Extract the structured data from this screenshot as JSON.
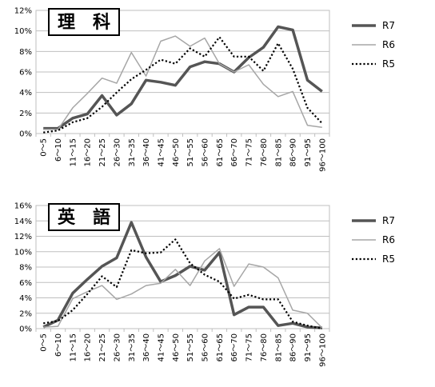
{
  "chart_data": [
    {
      "type": "line",
      "title": "理　科",
      "categories": [
        "0～5",
        "6～10",
        "11～15",
        "16～20",
        "21～25",
        "26～30",
        "31～35",
        "36～40",
        "41～45",
        "46～50",
        "51～55",
        "56～60",
        "61～65",
        "66～70",
        "71～75",
        "76～80",
        "81～85",
        "86～90",
        "91～95",
        "96～100"
      ],
      "yticks": [
        "0%",
        "2%",
        "4%",
        "6%",
        "8%",
        "10%",
        "12%"
      ],
      "ylim": [
        0,
        12
      ],
      "grid": true,
      "legend_position": "right",
      "series": [
        {
          "name": "R7",
          "color": "#555555",
          "style": "thick",
          "values": [
            0.5,
            0.5,
            1.5,
            1.9,
            3.7,
            1.8,
            2.9,
            5.2,
            5.0,
            4.7,
            6.5,
            7.0,
            6.8,
            6.0,
            7.4,
            8.4,
            10.4,
            10.1,
            5.2,
            4.1
          ]
        },
        {
          "name": "R6",
          "color": "#a6a6a6",
          "style": "thin",
          "values": [
            0.4,
            0.4,
            2.5,
            3.9,
            5.4,
            4.9,
            7.9,
            5.6,
            9.0,
            9.5,
            8.5,
            9.3,
            6.8,
            6.0,
            6.7,
            4.8,
            3.6,
            4.1,
            0.8,
            0.6
          ]
        },
        {
          "name": "R5",
          "color": "#000000",
          "style": "dotted",
          "values": [
            0.1,
            0.3,
            1.1,
            1.5,
            2.6,
            4.0,
            5.3,
            6.2,
            7.2,
            6.8,
            8.3,
            7.5,
            9.4,
            7.5,
            7.5,
            6.1,
            8.8,
            6.3,
            2.5,
            1.0
          ]
        }
      ]
    },
    {
      "type": "line",
      "title": "英　語",
      "categories": [
        "0～5",
        "6～10",
        "11～15",
        "16～20",
        "21～25",
        "26～30",
        "31～35",
        "36～40",
        "41～45",
        "46～50",
        "51～55",
        "56～60",
        "61～65",
        "66～70",
        "71～75",
        "76～80",
        "81～85",
        "86～90",
        "91～95",
        "96～100"
      ],
      "yticks": [
        "0%",
        "2%",
        "4%",
        "6%",
        "8%",
        "10%",
        "12%",
        "14%",
        "16%"
      ],
      "ylim": [
        0,
        16
      ],
      "grid": true,
      "legend_position": "right",
      "series": [
        {
          "name": "R7",
          "color": "#555555",
          "style": "thick",
          "values": [
            0.2,
            1.1,
            4.6,
            6.4,
            8.1,
            9.2,
            13.8,
            9.3,
            6.1,
            6.9,
            8.1,
            7.6,
            9.9,
            1.8,
            2.8,
            2.8,
            0.4,
            0.7,
            0.2,
            0.1
          ]
        },
        {
          "name": "R6",
          "color": "#a6a6a6",
          "style": "thin",
          "values": [
            0.2,
            0.3,
            3.9,
            4.8,
            5.6,
            3.8,
            4.5,
            5.6,
            5.9,
            7.7,
            5.6,
            8.8,
            10.4,
            5.5,
            8.4,
            8.0,
            6.6,
            2.4,
            2.0,
            0.1
          ]
        },
        {
          "name": "R5",
          "color": "#000000",
          "style": "dotted",
          "values": [
            0.7,
            1.0,
            2.4,
            4.5,
            6.8,
            5.4,
            10.2,
            9.8,
            9.9,
            11.6,
            8.5,
            7.0,
            6.1,
            3.9,
            4.4,
            3.8,
            3.8,
            0.9,
            0.4,
            0.0
          ]
        }
      ]
    }
  ]
}
